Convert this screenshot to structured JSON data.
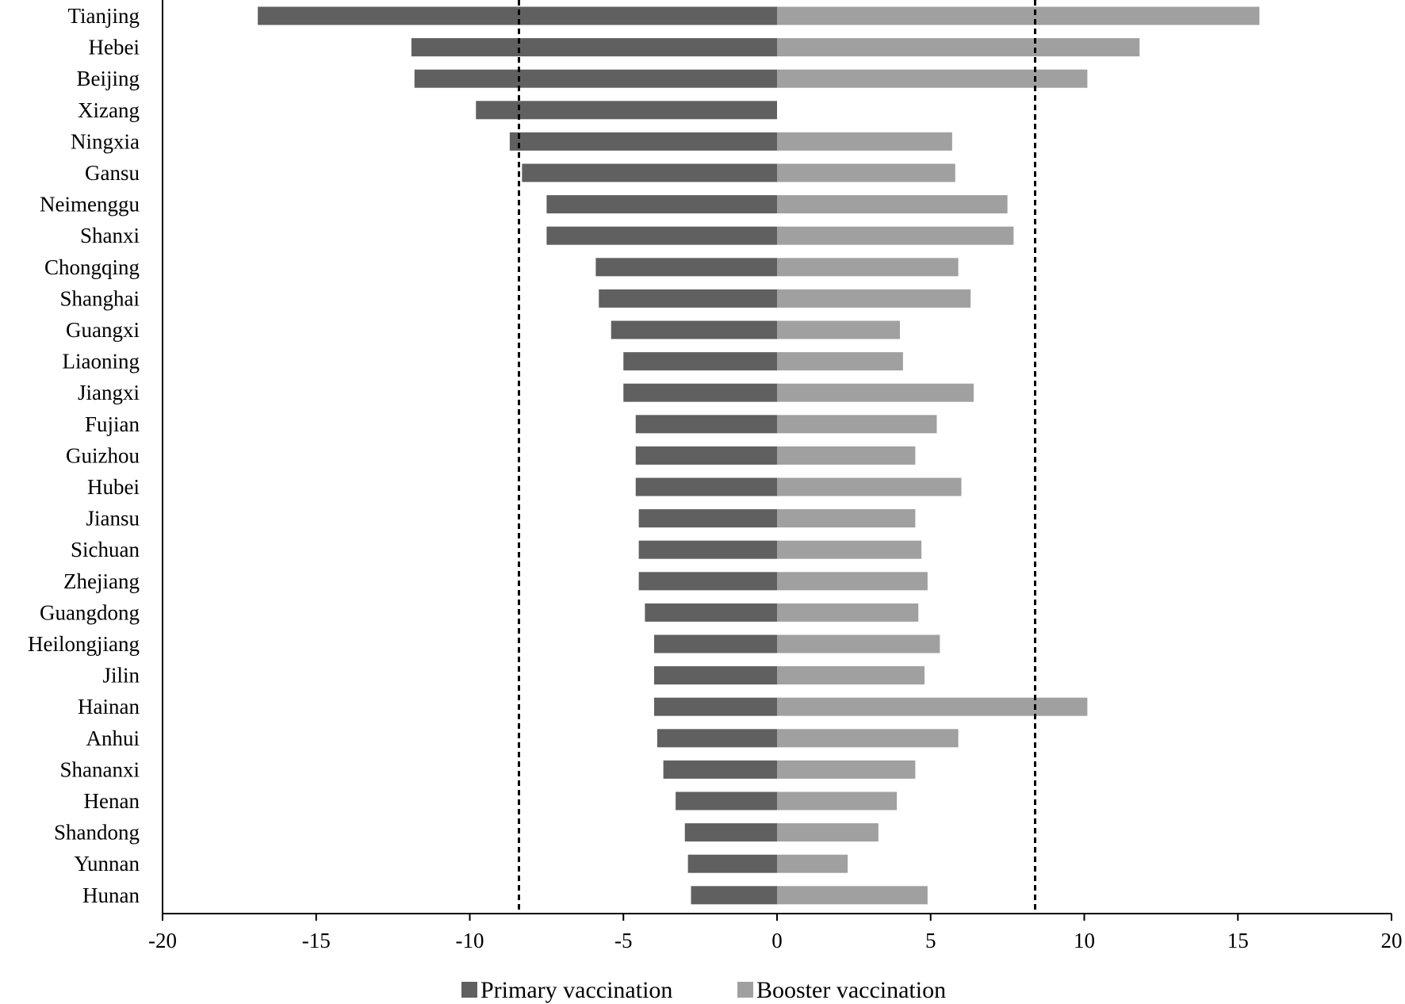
{
  "chart_data": {
    "type": "bar",
    "orientation": "horizontal",
    "categories": [
      "Tianjing",
      "Hebei",
      "Beijing",
      "Xizang",
      "Ningxia",
      "Gansu",
      "Neimenggu",
      "Shanxi",
      "Chongqing",
      "Shanghai",
      "Guangxi",
      "Liaoning",
      "Jiangxi",
      "Fujian",
      "Guizhou",
      "Hubei",
      "Jiansu",
      "Sichuan",
      "Zhejiang",
      "Guangdong",
      "Heilongjiang",
      "Jilin",
      "Hainan",
      "Anhui",
      "Shananxi",
      "Henan",
      "Shandong",
      "Yunnan",
      "Hunan"
    ],
    "series": [
      {
        "name": "Primary vaccination",
        "color": "#606060",
        "values": [
          -16.9,
          -11.9,
          -11.8,
          -9.8,
          -8.7,
          -8.3,
          -7.5,
          -7.5,
          -5.9,
          -5.8,
          -5.4,
          -5.0,
          -5.0,
          -4.6,
          -4.6,
          -4.6,
          -4.5,
          -4.5,
          -4.5,
          -4.3,
          -4.0,
          -4.0,
          -4.0,
          -3.9,
          -3.7,
          -3.3,
          -3.0,
          -2.9,
          -2.8
        ]
      },
      {
        "name": "Booster vaccination",
        "color": "#a0a0a0",
        "values": [
          15.7,
          11.8,
          10.1,
          0,
          5.7,
          5.8,
          7.5,
          7.7,
          5.9,
          6.3,
          4.0,
          4.1,
          6.4,
          5.2,
          4.5,
          6.0,
          4.5,
          4.7,
          4.9,
          4.6,
          5.3,
          4.8,
          10.1,
          5.9,
          4.5,
          3.9,
          3.3,
          2.3,
          4.9
        ]
      }
    ],
    "reference_lines": [
      -8.4,
      8.4
    ],
    "xlim": [
      -20,
      20
    ],
    "xticks": [
      "-20",
      "-15",
      "-10",
      "-5",
      "0",
      "5",
      "10",
      "15",
      "20"
    ],
    "title": "",
    "xlabel": "",
    "ylabel": "",
    "legend_position": "bottom-center",
    "grid": false
  }
}
